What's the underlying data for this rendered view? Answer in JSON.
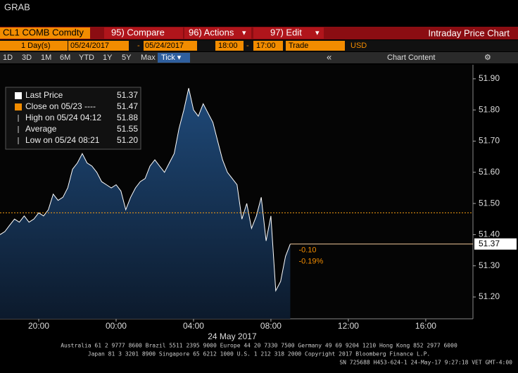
{
  "window_title": "GRAB",
  "toolbar": {
    "ticker": "CL1 COMB Comdty",
    "compare": "95) Compare",
    "actions": "96) Actions",
    "edit": "97) Edit",
    "caret": "▾",
    "view": "Intraday Price Chart"
  },
  "range_bar": {
    "days": "1 Day(s)",
    "start_date": "05/24/2017",
    "dash": "-",
    "end_date": "05/24/2017",
    "start_time": "18:00",
    "end_time": "17:00",
    "field": "Trade",
    "currency": "USD"
  },
  "period_bar": {
    "periods": [
      "1D",
      "3D",
      "1M",
      "6M",
      "YTD",
      "1Y",
      "5Y",
      "Max"
    ],
    "selected": "Tick ▾",
    "collapse": "«",
    "chart_content": "Chart Content",
    "settings": "⚙"
  },
  "legend": [
    {
      "label": "Last Price",
      "value": "51.37"
    },
    {
      "label": "Close on 05/23 ----",
      "value": "51.47"
    },
    {
      "label": "High on 05/24 04:12",
      "value": "51.88"
    },
    {
      "label": "Average",
      "value": "51.55"
    },
    {
      "label": "Low on 05/24 08:21",
      "value": "51.20"
    }
  ],
  "chart_data": {
    "type": "area",
    "x": [
      0,
      0.25,
      0.5,
      0.75,
      1,
      1.25,
      1.5,
      1.75,
      2,
      2.25,
      2.5,
      2.75,
      3,
      3.25,
      3.5,
      3.75,
      4,
      4.25,
      4.5,
      4.75,
      5,
      5.25,
      5.5,
      5.75,
      6,
      6.25,
      6.5,
      6.75,
      7,
      7.25,
      7.5,
      7.75,
      8,
      8.25,
      8.5,
      8.75,
      9,
      9.25,
      9.5,
      9.75,
      10,
      10.25,
      10.5,
      10.75,
      11,
      11.25,
      11.5,
      11.75,
      12,
      12.25,
      12.5,
      12.75,
      13,
      13.25,
      13.5,
      13.75,
      14,
      14.25,
      14.5,
      14.75,
      15
    ],
    "values": [
      51.4,
      51.41,
      51.43,
      51.45,
      51.44,
      51.46,
      51.44,
      51.45,
      51.47,
      51.46,
      51.48,
      51.53,
      51.51,
      51.52,
      51.55,
      51.61,
      51.63,
      51.66,
      51.63,
      51.62,
      51.6,
      51.57,
      51.56,
      51.55,
      51.56,
      51.54,
      51.48,
      51.52,
      51.55,
      51.57,
      51.58,
      51.62,
      51.64,
      51.62,
      51.6,
      51.63,
      51.66,
      51.74,
      51.8,
      51.87,
      51.8,
      51.78,
      51.82,
      51.79,
      51.76,
      51.7,
      51.64,
      51.6,
      51.58,
      51.56,
      51.45,
      51.5,
      51.42,
      51.46,
      51.52,
      51.38,
      51.46,
      51.22,
      51.25,
      51.33,
      51.37
    ],
    "color": "#ffffff",
    "close_price": 51.47,
    "close_color": "#f39c12",
    "last_price": 51.37,
    "last_label": "51.37",
    "change": "-0.10",
    "change_pct": "-0.19%",
    "xlim": [
      0,
      24.44
    ],
    "xticks": [
      {
        "value": 2,
        "label": "20:00"
      },
      {
        "value": 6,
        "label": "00:00"
      },
      {
        "value": 10,
        "label": "04:00"
      },
      {
        "value": 14,
        "label": "08:00"
      },
      {
        "value": 18,
        "label": "12:00"
      },
      {
        "value": 22,
        "label": "16:00"
      }
    ],
    "x_date": "24 May 2017",
    "ylim": [
      51.13,
      51.945
    ],
    "yticks": [
      {
        "value": 51.2,
        "label": "51.20"
      },
      {
        "value": 51.3,
        "label": "51.30"
      },
      {
        "value": 51.4,
        "label": "51.40"
      },
      {
        "value": 51.5,
        "label": "51.50"
      },
      {
        "value": 51.6,
        "label": "51.60"
      },
      {
        "value": 51.7,
        "label": "51.70"
      },
      {
        "value": 51.8,
        "label": "51.80"
      },
      {
        "value": 51.9,
        "label": "51.90"
      }
    ]
  },
  "footer": {
    "line1": "Australia 61 2 9777 8600 Brazil 5511 2395 9000 Europe 44 20 7330 7500 Germany 49 69 9204 1210 Hong Kong 852 2977 6000",
    "line2": "Japan 81 3 3201 8900      Singapore 65 6212 1000      U.S. 1 212 318 2000          Copyright 2017 Bloomberg Finance L.P.",
    "line3": "SN 725688 H453-624-1 24-May-17  9:27:18 VET  GMT-4:00"
  }
}
